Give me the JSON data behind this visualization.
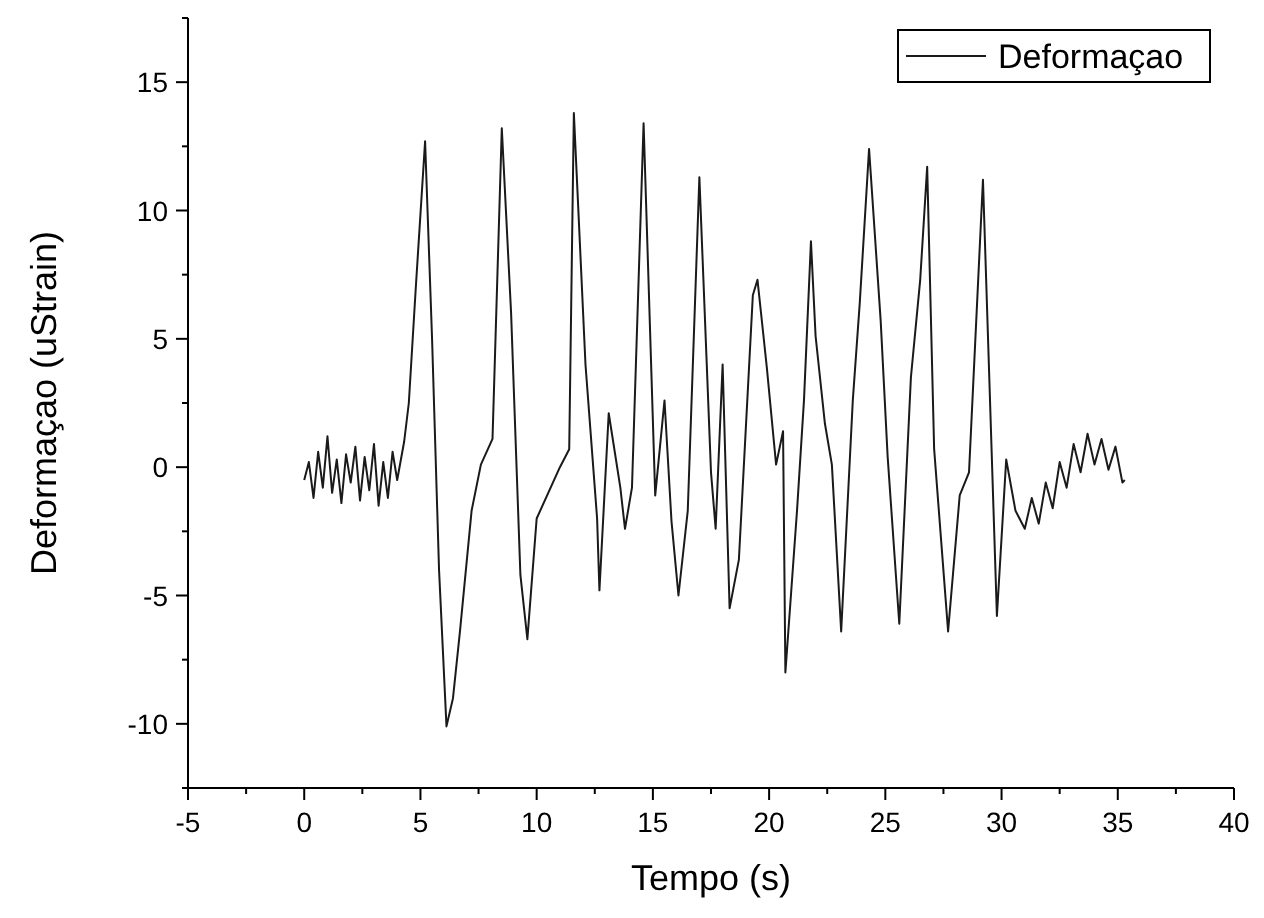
{
  "chart_data": {
    "type": "line",
    "xlabel": "Tempo (s)",
    "ylabel": "Deformaçao (uStrain)",
    "legend": "top right",
    "marker": "none",
    "line_style": "solid",
    "grid": false,
    "xlim": [
      -5,
      40
    ],
    "xticks": [
      -5,
      {
        "value": -2.5,
        "label": null
      },
      0,
      {
        "value": 2.5,
        "label": null
      },
      5,
      {
        "value": 7.5,
        "label": null
      },
      10,
      {
        "value": 12.5,
        "label": null
      },
      15,
      {
        "value": 17.5,
        "label": null
      },
      20,
      {
        "value": 22.5,
        "label": null
      },
      25,
      {
        "value": 27.5,
        "label": null
      },
      30,
      {
        "value": 32.5,
        "label": null
      },
      35,
      {
        "value": 37.5,
        "label": null
      },
      40
    ],
    "ylim": [
      -12.5,
      17.5
    ],
    "yticks": [
      {
        "value": -12.5,
        "label": null
      },
      -10,
      {
        "value": -7.5,
        "label": null
      },
      -5,
      {
        "value": -2.5,
        "label": null
      },
      0,
      {
        "value": 2.5,
        "label": null
      },
      5,
      {
        "value": 7.5,
        "label": null
      },
      10,
      {
        "value": 12.5,
        "label": null
      },
      15,
      {
        "value": 17.5,
        "label": null
      }
    ],
    "series": [
      {
        "name": "Deformaçao",
        "color": "#1a1a1a",
        "x": [
          0,
          0.2,
          0.4,
          0.6,
          0.8,
          1.0,
          1.2,
          1.4,
          1.6,
          1.8,
          2.0,
          2.2,
          2.4,
          2.6,
          2.8,
          3.0,
          3.2,
          3.4,
          3.6,
          3.8,
          4.0,
          4.3,
          4.5,
          4.8,
          5.2,
          5.5,
          5.8,
          6.12,
          6.4,
          6.7,
          7.2,
          7.6,
          8.1,
          8.5,
          8.9,
          9.3,
          9.6,
          10,
          11,
          11.4,
          11.6,
          12.1,
          12.6,
          12.7,
          13.1,
          13.6,
          13.8,
          14.1,
          14.6,
          15.1,
          15.5,
          15.8,
          16.1,
          16.5,
          17.0,
          17.5,
          17.7,
          18.0,
          18.3,
          18.7,
          19.3,
          19.5,
          19.9,
          20.3,
          20.6,
          20.7,
          21.2,
          21.5,
          21.8,
          22.0,
          22.4,
          22.7,
          23.1,
          23.6,
          23.9,
          24.3,
          24.8,
          25.1,
          25.6,
          26.1,
          26.5,
          26.8,
          27.1,
          27.7,
          28.2,
          28.6,
          29.2,
          29.8,
          30.2,
          30.6,
          31.0,
          31.3,
          31.6,
          31.9,
          32.2,
          32.5,
          32.8,
          33.1,
          33.4,
          33.7,
          34.0,
          34.3,
          34.6,
          34.9,
          35.2,
          35.3
        ],
        "values": [
          -0.5,
          0.2,
          -1.2,
          0.6,
          -0.8,
          1.2,
          -1.0,
          0.3,
          -1.4,
          0.5,
          -0.6,
          0.8,
          -1.3,
          0.4,
          -0.9,
          0.9,
          -1.5,
          0.2,
          -1.2,
          0.6,
          -0.5,
          1.0,
          2.5,
          7.0,
          12.7,
          5.0,
          -4.0,
          -10.1,
          -9.0,
          -6.4,
          -1.7,
          0.1,
          1.1,
          13.2,
          6.0,
          -4.2,
          -6.7,
          -2.0,
          0.0,
          0.7,
          13.8,
          4.0,
          -2.0,
          -4.8,
          2.1,
          -0.8,
          -2.4,
          -0.8,
          13.4,
          -1.1,
          2.6,
          -2.1,
          -5.0,
          -1.7,
          11.3,
          -0.2,
          -2.4,
          4.0,
          -5.5,
          -3.6,
          6.7,
          7.3,
          3.9,
          0.1,
          1.4,
          -8.0,
          -1.7,
          2.6,
          8.8,
          5.1,
          1.7,
          0.1,
          -6.4,
          2.6,
          6.4,
          12.4,
          5.7,
          0.4,
          -6.1,
          3.5,
          7.3,
          11.7,
          0.7,
          -6.4,
          -1.1,
          -0.2,
          11.2,
          -5.8,
          0.3,
          -1.7,
          -2.4,
          -1.2,
          -2.2,
          -0.6,
          -1.6,
          0.2,
          -0.8,
          0.9,
          -0.2,
          1.3,
          0.1,
          1.1,
          -0.1,
          0.8,
          -0.6,
          -0.5
        ]
      }
    ]
  }
}
